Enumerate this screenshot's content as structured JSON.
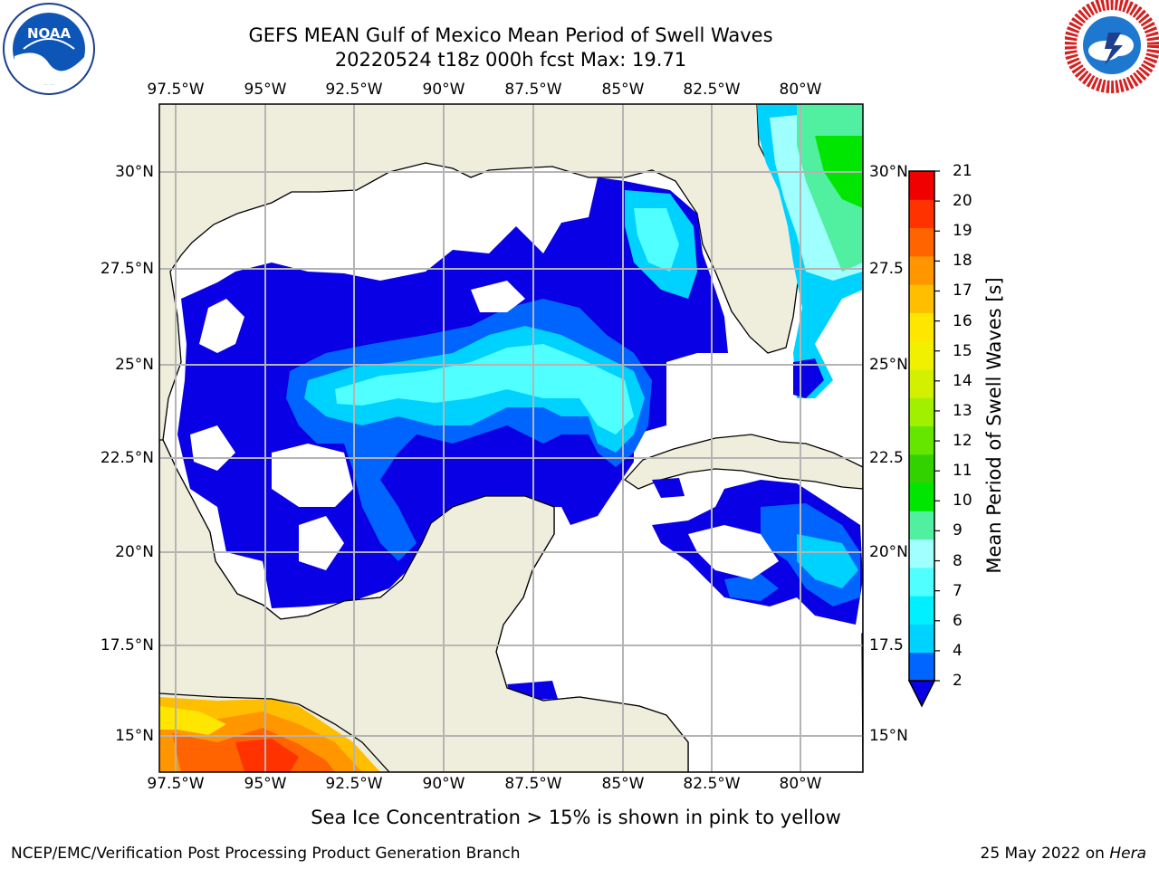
{
  "title": {
    "line1": "GEFS MEAN Gulf of Mexico Mean Period of Swell Waves",
    "line2": "20220524 t18z 000h fcst   Max: 19.71"
  },
  "logos": {
    "left": "noaa-logo",
    "left_text": "NOAA",
    "right": "nws-logo"
  },
  "map": {
    "lon_labels": [
      "97.5°W",
      "95°W",
      "92.5°W",
      "90°W",
      "87.5°W",
      "85°W",
      "82.5°W",
      "80°W"
    ],
    "lat_labels_left": [
      "30°N",
      "27.5°N",
      "25°N",
      "22.5°N",
      "20°N",
      "17.5°N",
      "15°N"
    ],
    "lat_labels_right": [
      "30°N",
      "27.5",
      "25°N",
      "22.5",
      "20°N",
      "17.5",
      "15°N"
    ],
    "land_color": "#efeedc",
    "grid_color": "#b4b4b4"
  },
  "colorbar": {
    "label": "Mean Period of Swell Waves [s]",
    "ticks": [
      "2",
      "4",
      "6",
      "7",
      "8",
      "9",
      "10",
      "11",
      "12",
      "13",
      "14",
      "15",
      "16",
      "17",
      "18",
      "19",
      "20",
      "21"
    ],
    "colors": [
      "#0064ff",
      "#00d2ff",
      "#00f0ff",
      "#50ffff",
      "#a0ffff",
      "#50f0a0",
      "#00e600",
      "#32d200",
      "#64e600",
      "#a0f000",
      "#d2f000",
      "#f0f000",
      "#ffe600",
      "#ffbe00",
      "#ff9600",
      "#ff6400",
      "#ff3200",
      "#f00000"
    ],
    "below_color": "#0a00e6"
  },
  "caption": "Sea Ice Concentration > 15% is shown in pink to yellow",
  "footer": {
    "left": "NCEP/EMC/Verification Post Processing Product Generation Branch",
    "right_date": "25 May 2022 on ",
    "right_host": "Hera"
  }
}
